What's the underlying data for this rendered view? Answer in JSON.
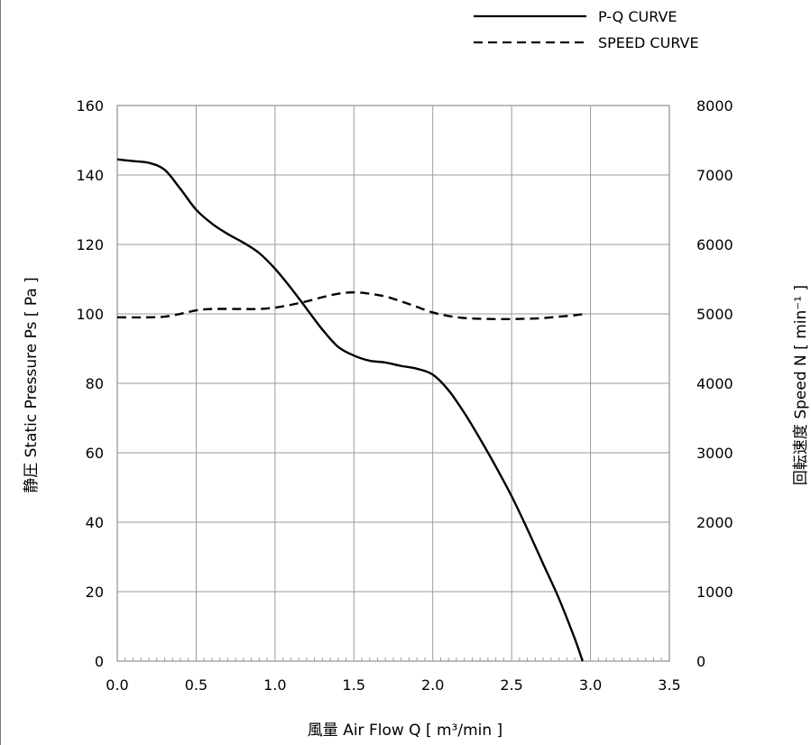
{
  "chart_data": {
    "type": "line",
    "xlabel": "風量 Air Flow Q [ m³/min ]",
    "ylabel_left": "静圧 Static Pressure Ps [ Pa ]",
    "ylabel_right": "回転速度 Speed N [ min⁻¹ ]",
    "xlim": [
      0,
      3.5
    ],
    "ylim_left": [
      0,
      160
    ],
    "ylim_right": [
      0,
      8000
    ],
    "x_ticks": [
      "0.0",
      "0.5",
      "1.0",
      "1.5",
      "2.0",
      "2.5",
      "3.0",
      "3.5"
    ],
    "y_left_ticks": [
      "0",
      "20",
      "40",
      "60",
      "80",
      "100",
      "120",
      "140",
      "160"
    ],
    "y_right_ticks": [
      "0",
      "1000",
      "2000",
      "3000",
      "4000",
      "5000",
      "6000",
      "7000",
      "8000"
    ],
    "grid": true,
    "legend_position": "top-right",
    "series": [
      {
        "name": "P-Q CURVE",
        "axis": "left",
        "style": "solid",
        "color": "#000000",
        "points": [
          [
            0.0,
            144.5
          ],
          [
            0.1,
            144.0
          ],
          [
            0.2,
            143.5
          ],
          [
            0.3,
            141.5
          ],
          [
            0.4,
            136.0
          ],
          [
            0.5,
            130.0
          ],
          [
            0.6,
            126.0
          ],
          [
            0.7,
            123.0
          ],
          [
            0.8,
            120.5
          ],
          [
            0.9,
            117.5
          ],
          [
            1.0,
            113.0
          ],
          [
            1.1,
            107.5
          ],
          [
            1.2,
            101.5
          ],
          [
            1.3,
            95.5
          ],
          [
            1.4,
            90.5
          ],
          [
            1.5,
            88.0
          ],
          [
            1.6,
            86.5
          ],
          [
            1.7,
            86.0
          ],
          [
            1.8,
            85.0
          ],
          [
            1.9,
            84.2
          ],
          [
            2.0,
            82.5
          ],
          [
            2.1,
            78.0
          ],
          [
            2.2,
            71.5
          ],
          [
            2.3,
            64.0
          ],
          [
            2.4,
            56.0
          ],
          [
            2.5,
            47.5
          ],
          [
            2.6,
            38.0
          ],
          [
            2.7,
            28.0
          ],
          [
            2.8,
            18.0
          ],
          [
            2.9,
            6.5
          ],
          [
            2.95,
            0.0
          ]
        ]
      },
      {
        "name": "SPEED CURVE",
        "axis": "right",
        "style": "dashed",
        "color": "#000000",
        "points": [
          [
            0.0,
            4950
          ],
          [
            0.2,
            4950
          ],
          [
            0.3,
            4960
          ],
          [
            0.4,
            5000
          ],
          [
            0.5,
            5050
          ],
          [
            0.6,
            5070
          ],
          [
            0.8,
            5070
          ],
          [
            0.9,
            5070
          ],
          [
            1.0,
            5090
          ],
          [
            1.1,
            5130
          ],
          [
            1.2,
            5180
          ],
          [
            1.3,
            5240
          ],
          [
            1.4,
            5290
          ],
          [
            1.5,
            5310
          ],
          [
            1.6,
            5290
          ],
          [
            1.7,
            5250
          ],
          [
            1.8,
            5180
          ],
          [
            1.9,
            5100
          ],
          [
            2.0,
            5020
          ],
          [
            2.1,
            4970
          ],
          [
            2.2,
            4940
          ],
          [
            2.3,
            4930
          ],
          [
            2.4,
            4925
          ],
          [
            2.5,
            4925
          ],
          [
            2.6,
            4930
          ],
          [
            2.7,
            4940
          ],
          [
            2.8,
            4960
          ],
          [
            2.9,
            4980
          ],
          [
            2.95,
            4995
          ]
        ]
      }
    ]
  }
}
